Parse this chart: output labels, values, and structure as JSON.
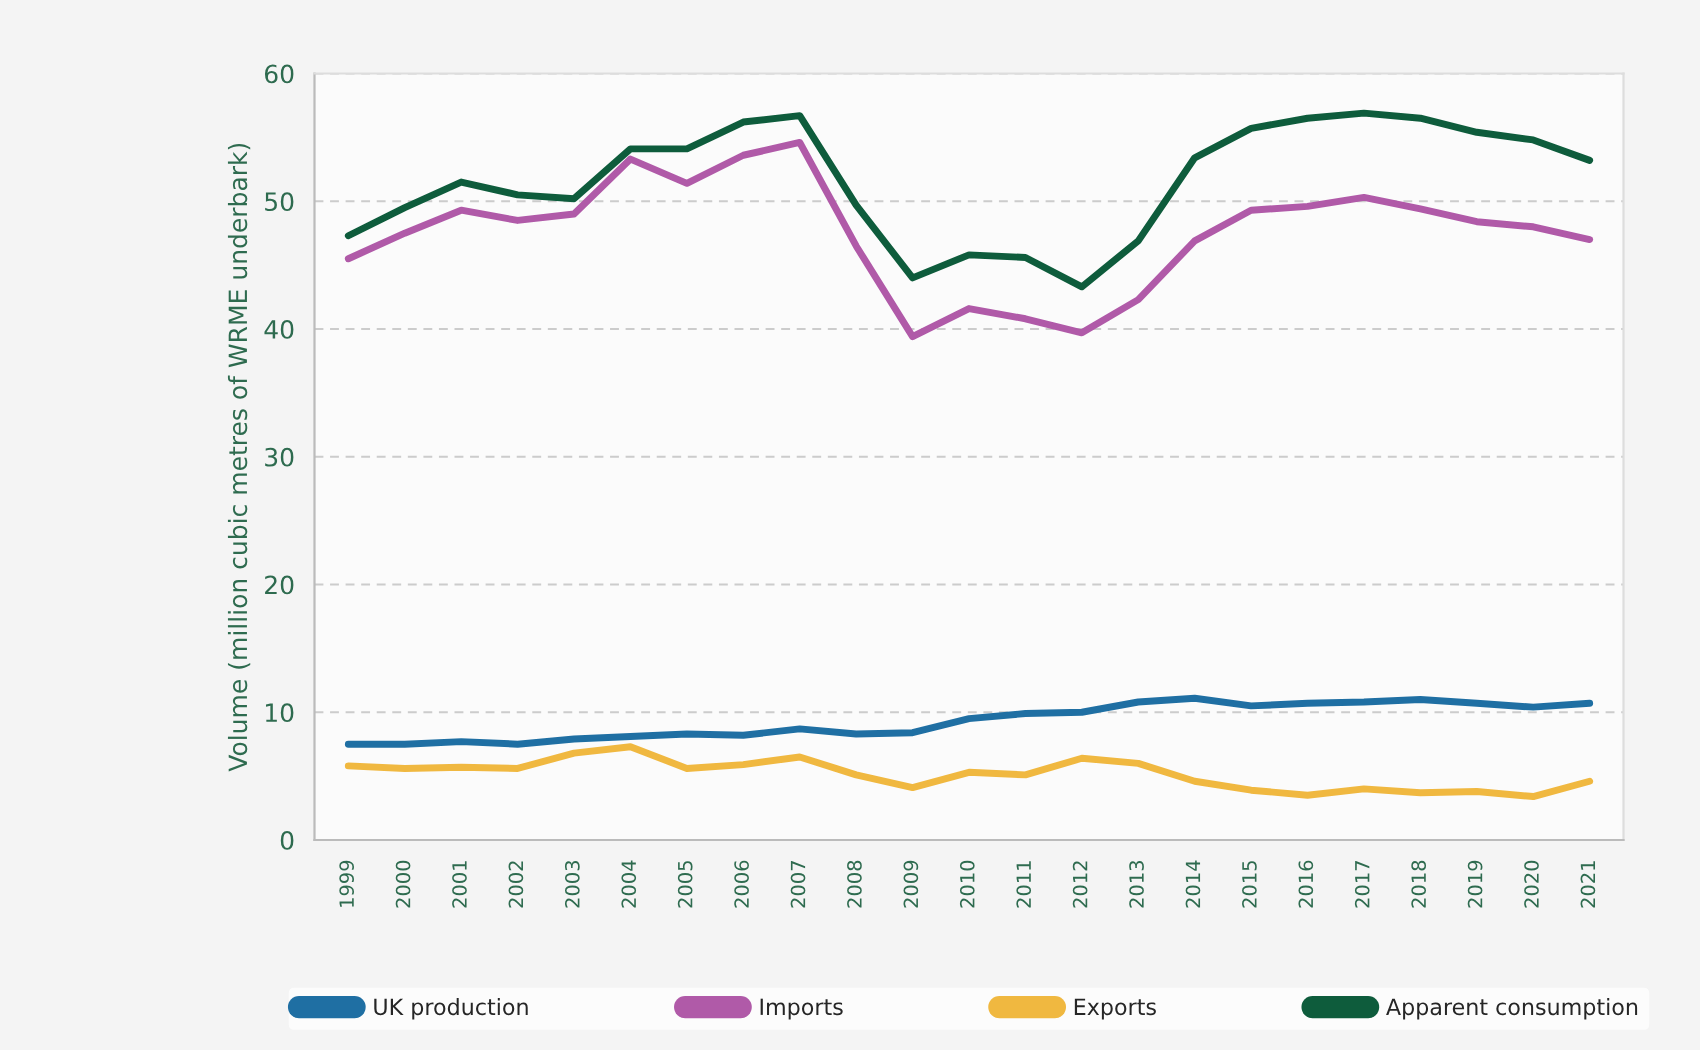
{
  "chart_data": {
    "type": "line",
    "ylabel": "Volume (million cubic metres of WRME underbark)",
    "categories": [
      "1999",
      "2000",
      "2001",
      "2002",
      "2003",
      "2004",
      "2005",
      "2006",
      "2007",
      "2008",
      "2009",
      "2010",
      "2011",
      "2012",
      "2013",
      "2014",
      "2015",
      "2016",
      "2017",
      "2018",
      "2019",
      "2020",
      "2021"
    ],
    "series": [
      {
        "name": "UK production",
        "color": "#1f6fa3",
        "values": [
          7.5,
          7.5,
          7.7,
          7.5,
          7.9,
          8.1,
          8.3,
          8.2,
          8.7,
          8.3,
          8.4,
          9.5,
          9.9,
          10.0,
          10.8,
          11.1,
          10.5,
          10.7,
          10.8,
          11.0,
          10.7,
          10.4,
          10.7
        ]
      },
      {
        "name": "Imports",
        "color": "#b05aa8",
        "values": [
          45.5,
          47.5,
          49.3,
          48.5,
          49.0,
          53.3,
          51.4,
          53.6,
          54.6,
          46.5,
          39.4,
          41.6,
          40.8,
          39.7,
          42.3,
          46.9,
          49.3,
          49.6,
          50.3,
          49.4,
          48.4,
          48.0,
          47.0
        ]
      },
      {
        "name": "Exports",
        "color": "#f0b840",
        "values": [
          5.8,
          5.6,
          5.7,
          5.6,
          6.8,
          7.3,
          5.6,
          5.9,
          6.5,
          5.1,
          4.1,
          5.3,
          5.1,
          6.4,
          6.0,
          4.6,
          3.9,
          3.5,
          4.0,
          3.7,
          3.8,
          3.4,
          4.6
        ]
      },
      {
        "name": "Apparent consumption",
        "color": "#0e5c3c",
        "values": [
          47.3,
          49.5,
          51.5,
          50.5,
          50.2,
          54.1,
          54.1,
          56.2,
          56.7,
          49.7,
          44.0,
          45.8,
          45.6,
          43.3,
          46.9,
          53.4,
          55.7,
          56.5,
          56.9,
          56.5,
          55.4,
          54.8,
          53.2
        ]
      }
    ],
    "ylim": [
      0,
      60
    ],
    "yticks": [
      0,
      10,
      20,
      30,
      40,
      50,
      60
    ],
    "grid": "y",
    "legend": "bottom",
    "marker": "none",
    "line_style": "solid"
  }
}
